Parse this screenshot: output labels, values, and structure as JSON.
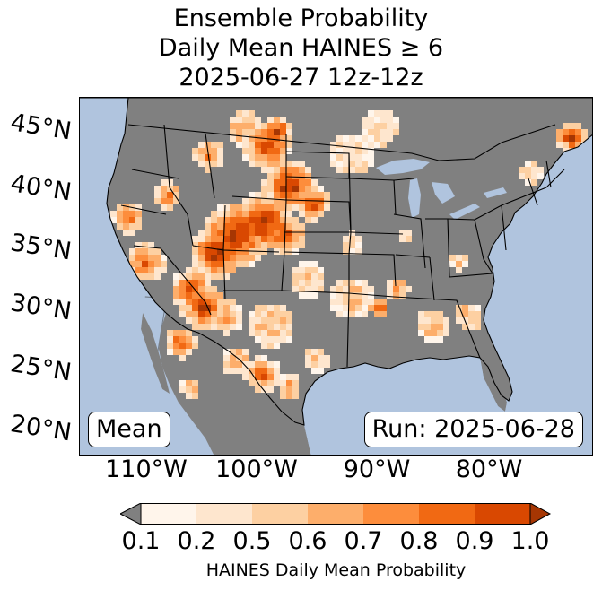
{
  "title": {
    "line1": "Ensemble Probability",
    "line2": "Daily Mean HAINES ≥ 6",
    "line3": "2025-06-27 12z-12z"
  },
  "map": {
    "lat_labels": [
      "45°N",
      "40°N",
      "35°N",
      "30°N",
      "25°N",
      "20°N"
    ],
    "lon_labels": [
      "110°W",
      "100°W",
      "90°W",
      "80°W"
    ],
    "mean_label": "Mean",
    "run_label": "Run: 2025-06-28",
    "colors": {
      "ocean": "#b0c4de",
      "land": "#808080",
      "borders": "#000000"
    }
  },
  "colorbar": {
    "ticks": [
      "0.1",
      "0.2",
      "0.5",
      "0.6",
      "0.7",
      "0.8",
      "0.9",
      "1.0"
    ],
    "colors": [
      "#fff5eb",
      "#fee6ce",
      "#fdd0a2",
      "#fdae6b",
      "#fd8d3c",
      "#f16913",
      "#d94801",
      "#a63603"
    ],
    "under_color": "#808080",
    "label": "HAINES Daily Mean Probability"
  }
}
